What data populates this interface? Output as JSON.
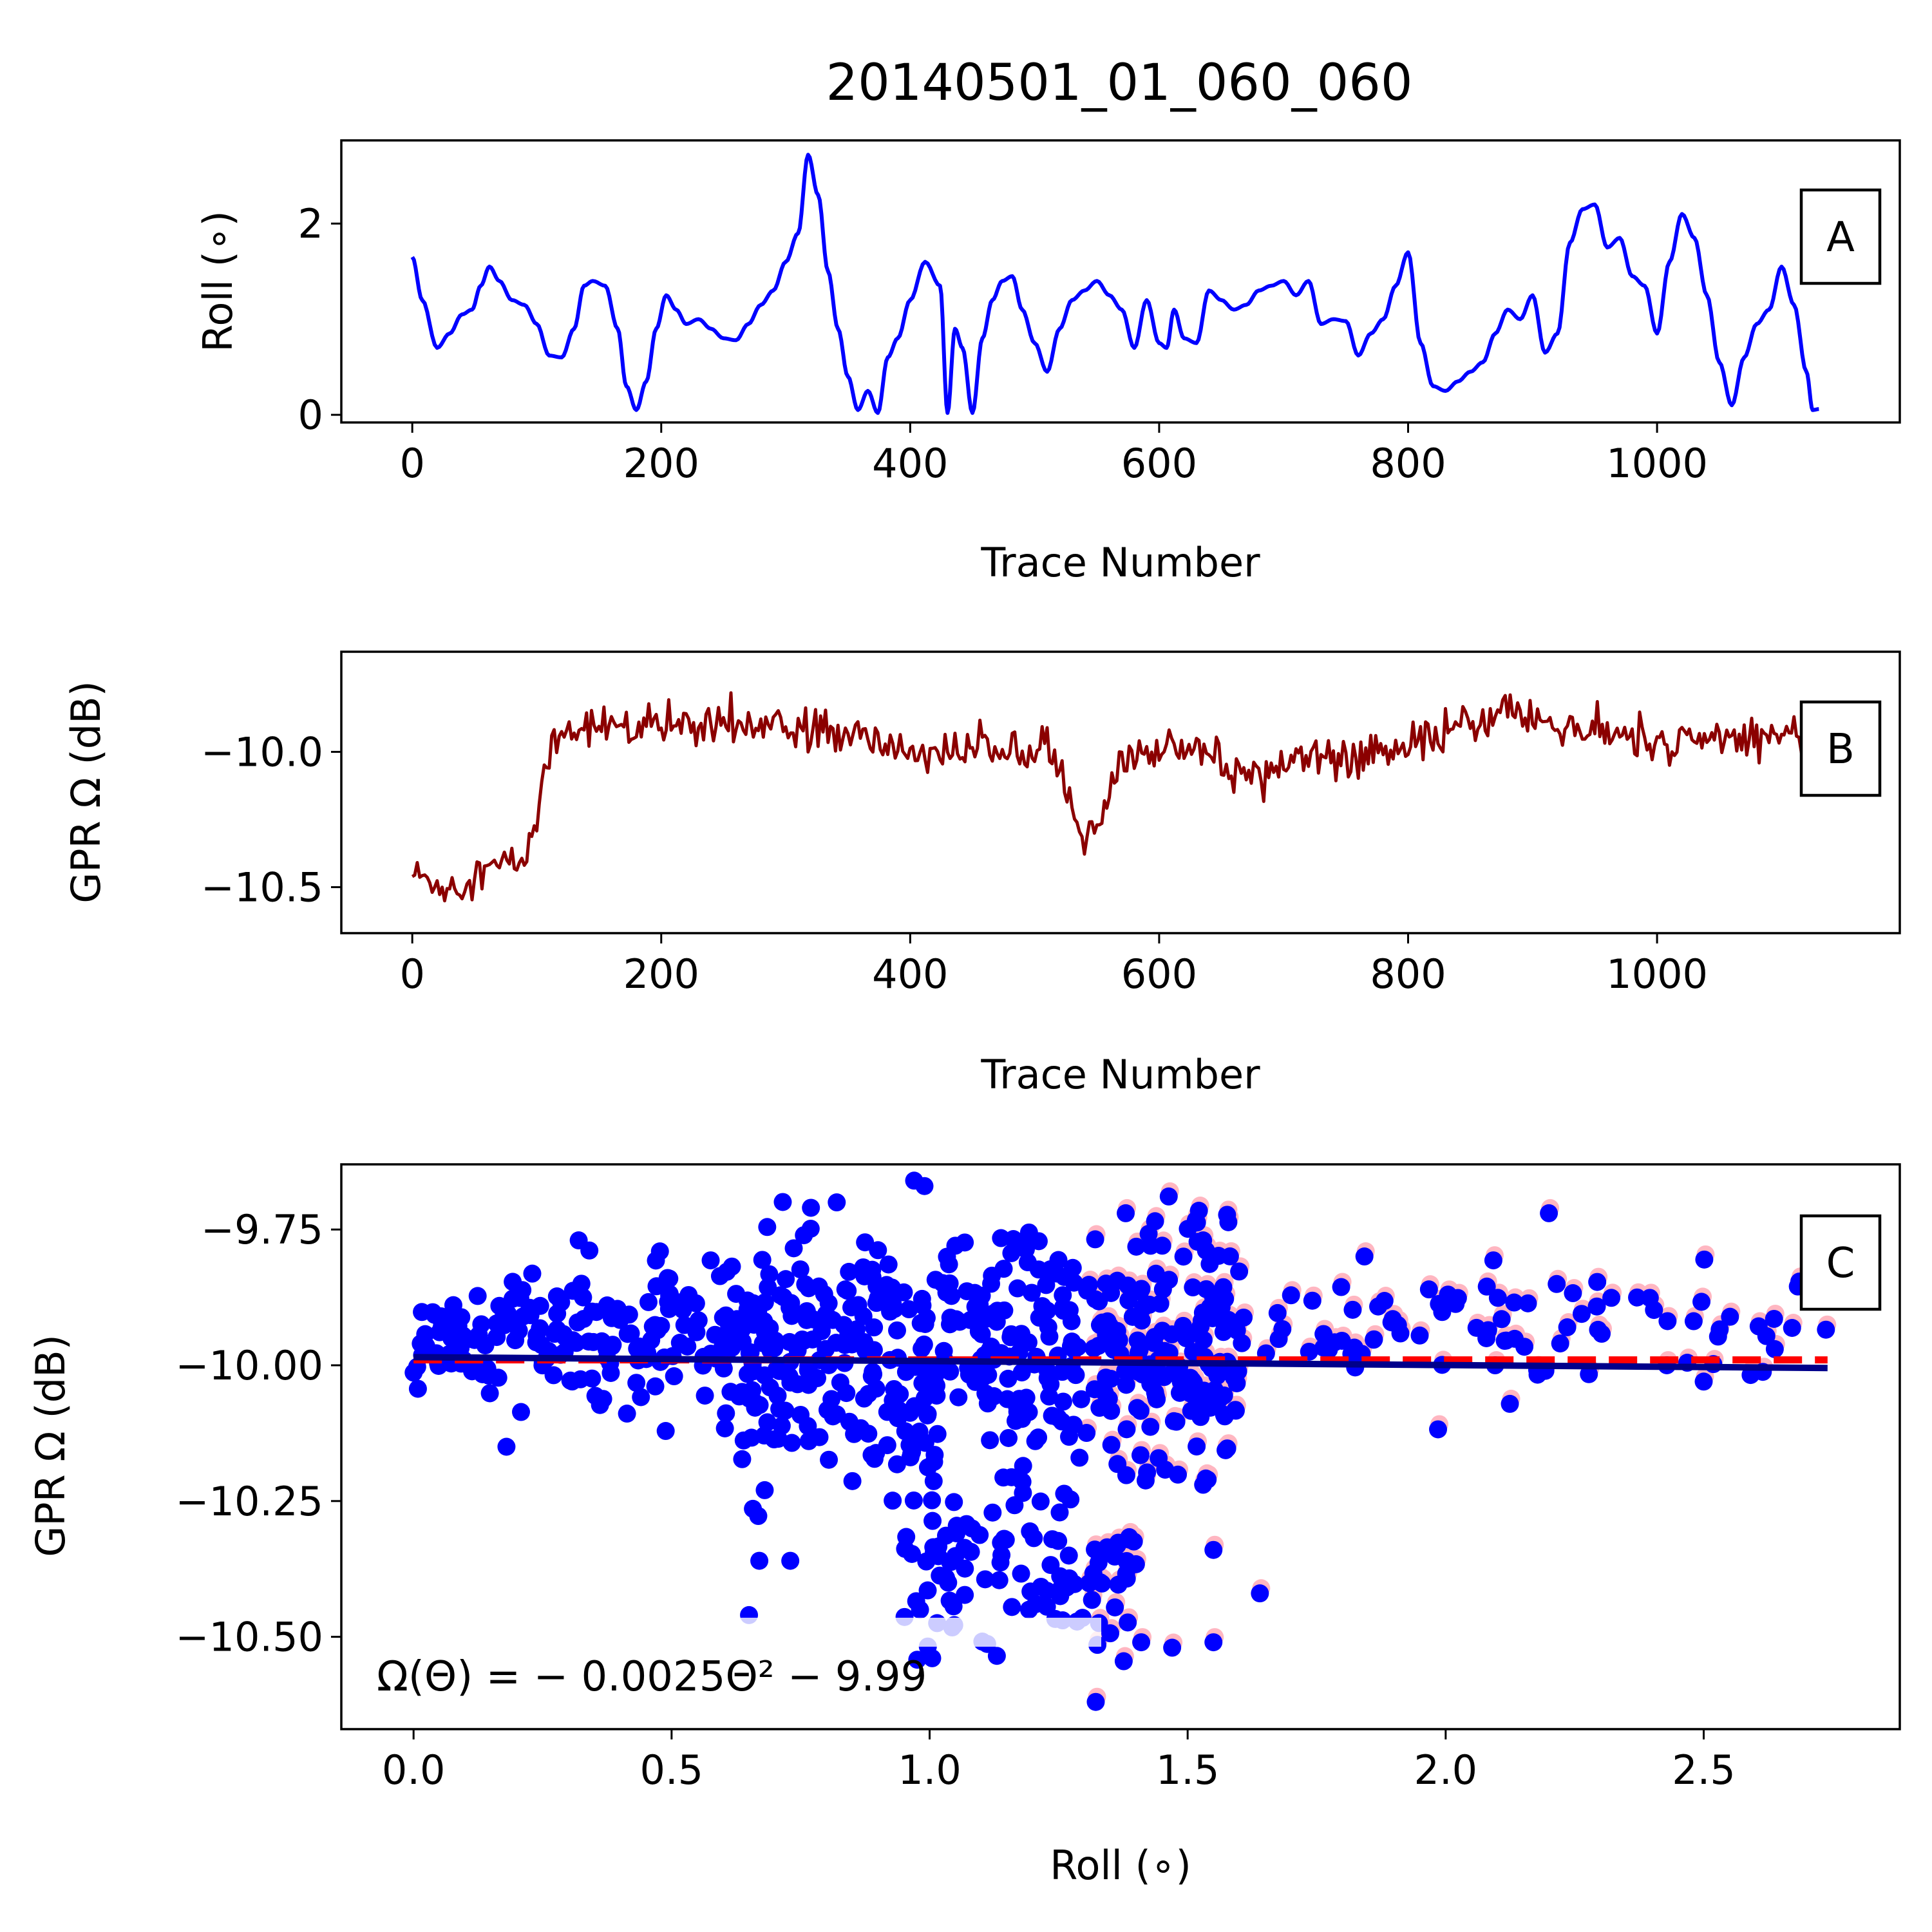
{
  "figure_title": "20140501_01_060_060",
  "colors": {
    "roll_line": "#0000ff",
    "gpr_line": "#8b0000",
    "scatter_points": "#0000ff",
    "scatter_shadow": "#ffb6c1",
    "fit_line": "#00008b",
    "dashed_line": "#ff0000"
  },
  "chart_data": [
    {
      "id": "A",
      "type": "line",
      "panel_label": "A",
      "xlabel": "Trace Number",
      "ylabel": "Roll (∘)",
      "xlim": [
        -57,
        1195
      ],
      "ylim": [
        -0.08,
        2.87
      ],
      "xticks": [
        0,
        200,
        400,
        600,
        800,
        1000
      ],
      "xtick_labels": [
        "0",
        "200",
        "400",
        "600",
        "800",
        "1000"
      ],
      "yticks": [
        0,
        2
      ],
      "ytick_labels": [
        "0",
        "2"
      ],
      "series": [
        {
          "color": "#0000ff",
          "x": [
            0,
            8,
            20,
            30,
            40,
            48,
            55,
            62,
            70,
            80,
            90,
            100,
            110,
            120,
            130,
            138,
            145,
            155,
            165,
            172,
            180,
            188,
            196,
            204,
            212,
            220,
            230,
            240,
            250,
            260,
            270,
            280,
            290,
            300,
            310,
            318,
            326,
            334,
            342,
            350,
            358,
            366,
            374,
            382,
            390,
            400,
            412,
            424,
            430,
            436,
            442,
            450,
            458,
            466,
            474,
            482,
            490,
            500,
            510,
            520,
            530,
            540,
            550,
            560,
            570,
            580,
            590,
            600,
            606,
            612,
            620,
            630,
            640,
            650,
            660,
            670,
            680,
            690,
            700,
            710,
            720,
            730,
            740,
            750,
            760,
            770,
            780,
            790,
            800,
            810,
            820,
            830,
            840,
            850,
            860,
            870,
            880,
            890,
            900,
            910,
            920,
            930,
            940,
            950,
            960,
            970,
            980,
            990,
            1000,
            1010,
            1020,
            1030,
            1040,
            1050,
            1060,
            1070,
            1080,
            1090,
            1100,
            1110,
            1120,
            1125,
            1130
          ],
          "y": [
            1.65,
            1.2,
            0.7,
            0.85,
            1.05,
            1.1,
            1.35,
            1.55,
            1.4,
            1.2,
            1.15,
            0.95,
            0.62,
            0.6,
            0.9,
            1.35,
            1.4,
            1.35,
            0.9,
            0.3,
            0.05,
            0.35,
            0.9,
            1.25,
            1.1,
            0.95,
            1.0,
            0.9,
            0.8,
            0.78,
            0.95,
            1.15,
            1.3,
            1.6,
            1.9,
            2.72,
            2.3,
            1.5,
            0.9,
            0.4,
            0.05,
            0.25,
            0.02,
            0.6,
            0.8,
            1.2,
            1.6,
            1.35,
            0.02,
            0.9,
            0.7,
            0.02,
            0.8,
            1.2,
            1.4,
            1.45,
            1.1,
            0.75,
            0.45,
            0.9,
            1.2,
            1.3,
            1.4,
            1.25,
            1.1,
            0.7,
            1.2,
            0.75,
            0.7,
            1.1,
            0.8,
            0.75,
            1.3,
            1.2,
            1.1,
            1.15,
            1.3,
            1.35,
            1.4,
            1.25,
            1.4,
            0.95,
            1.0,
            0.98,
            0.62,
            0.85,
            1.0,
            1.35,
            1.7,
            0.75,
            0.3,
            0.25,
            0.35,
            0.45,
            0.55,
            0.85,
            1.1,
            1.0,
            1.25,
            0.65,
            0.85,
            1.8,
            2.15,
            2.2,
            1.75,
            1.85,
            1.45,
            1.35,
            0.85,
            1.6,
            2.1,
            1.85,
            1.25,
            0.55,
            0.1,
            0.6,
            0.95,
            1.1,
            1.55,
            1.15,
            0.45,
            0.05,
            0.06
          ]
        }
      ]
    },
    {
      "id": "B",
      "type": "line",
      "panel_label": "B",
      "xlabel": "Trace Number",
      "ylabel": "GPR Ω (dB)",
      "xlim": [
        -57,
        1195
      ],
      "ylim": [
        -10.67,
        -9.63
      ],
      "xticks": [
        0,
        200,
        400,
        600,
        800,
        1000
      ],
      "xtick_labels": [
        "0",
        "200",
        "400",
        "600",
        "800",
        "1000"
      ],
      "yticks": [
        -10.0,
        -10.5
      ],
      "ytick_labels": [
        "−10.0",
        "−10.5"
      ],
      "series": [
        {
          "color": "#8b0000",
          "noise": 0.07,
          "x": [
            0,
            15,
            30,
            50,
            70,
            90,
            100,
            110,
            120,
            140,
            160,
            180,
            200,
            220,
            250,
            280,
            300,
            330,
            360,
            400,
            440,
            480,
            510,
            530,
            540,
            550,
            570,
            600,
            640,
            660,
            680,
            700,
            720,
            750,
            780,
            800,
            820,
            850,
            880,
            900,
            940,
            980,
            1000,
            1040,
            1080,
            1110,
            1130
          ],
          "y": [
            -10.45,
            -10.48,
            -10.5,
            -10.45,
            -10.42,
            -10.4,
            -10.25,
            -10.0,
            -9.92,
            -9.9,
            -9.9,
            -9.92,
            -9.9,
            -9.9,
            -9.88,
            -9.9,
            -9.92,
            -9.92,
            -9.95,
            -10.0,
            -10.0,
            -9.97,
            -9.98,
            -10.2,
            -10.35,
            -10.28,
            -10.05,
            -9.98,
            -9.98,
            -10.1,
            -10.08,
            -10.05,
            -10.0,
            -10.02,
            -10.0,
            -10.0,
            -9.95,
            -9.9,
            -9.85,
            -9.88,
            -9.92,
            -9.95,
            -9.98,
            -9.95,
            -9.95,
            -9.92,
            -9.92
          ]
        }
      ]
    },
    {
      "id": "C",
      "type": "scatter",
      "panel_label": "C",
      "xlabel": "Roll (∘)",
      "ylabel": "GPR Ω (dB)",
      "xlim": [
        -0.14,
        2.88
      ],
      "ylim": [
        -10.67,
        -9.63
      ],
      "xticks": [
        0.0,
        0.5,
        1.0,
        1.5,
        2.0,
        2.5
      ],
      "xtick_labels": [
        "0.0",
        "0.5",
        "1.0",
        "1.5",
        "2.0",
        "2.5"
      ],
      "yticks": [
        -9.75,
        -10.0,
        -10.25,
        -10.5
      ],
      "ytick_labels": [
        "−9.75",
        "−10.00",
        "−10.25",
        "−10.50"
      ],
      "equation": "Ω(Θ) = − 0.0025Θ² − 9.99",
      "fit_line": {
        "x": [
          0.0,
          2.74
        ],
        "y": [
          -9.985,
          -10.005
        ]
      },
      "dashed_line": {
        "x": [
          0.0,
          2.74
        ],
        "y": [
          -9.99,
          -9.99
        ]
      },
      "clusters": [
        {
          "x_range": [
            0.0,
            0.6
          ],
          "y_mean": -9.95,
          "y_sd": 0.06,
          "count": 170
        },
        {
          "x_range": [
            0.6,
            1.6
          ],
          "y_mean": -9.98,
          "y_sd": 0.12,
          "count": 520
        },
        {
          "x_range": [
            0.95,
            1.4
          ],
          "y_mean": -10.38,
          "y_sd": 0.08,
          "count": 110
        },
        {
          "x_range": [
            1.6,
            2.74
          ],
          "y_mean": -9.93,
          "y_sd": 0.05,
          "count": 90
        }
      ],
      "extra_points": [
        {
          "x": 0.97,
          "y": -9.66
        },
        {
          "x": 0.99,
          "y": -9.67
        },
        {
          "x": 0.77,
          "y": -9.71
        },
        {
          "x": 0.82,
          "y": -9.7
        },
        {
          "x": 1.38,
          "y": -9.72
        },
        {
          "x": 2.2,
          "y": -9.72
        },
        {
          "x": 0.32,
          "y": -9.77
        },
        {
          "x": 1.53,
          "y": -9.77
        },
        {
          "x": 0.18,
          "y": -10.15
        },
        {
          "x": 0.67,
          "y": -10.36
        },
        {
          "x": 0.73,
          "y": -10.36
        },
        {
          "x": 1.64,
          "y": -10.42
        },
        {
          "x": 2.5,
          "y": -10.03
        },
        {
          "x": 0.65,
          "y": -10.46
        },
        {
          "x": 1.55,
          "y": -10.51
        },
        {
          "x": 1.47,
          "y": -10.52
        },
        {
          "x": 1.41,
          "y": -10.51
        },
        {
          "x": 1.55,
          "y": -10.34
        },
        {
          "x": 1.53,
          "y": -10.22
        }
      ]
    }
  ]
}
